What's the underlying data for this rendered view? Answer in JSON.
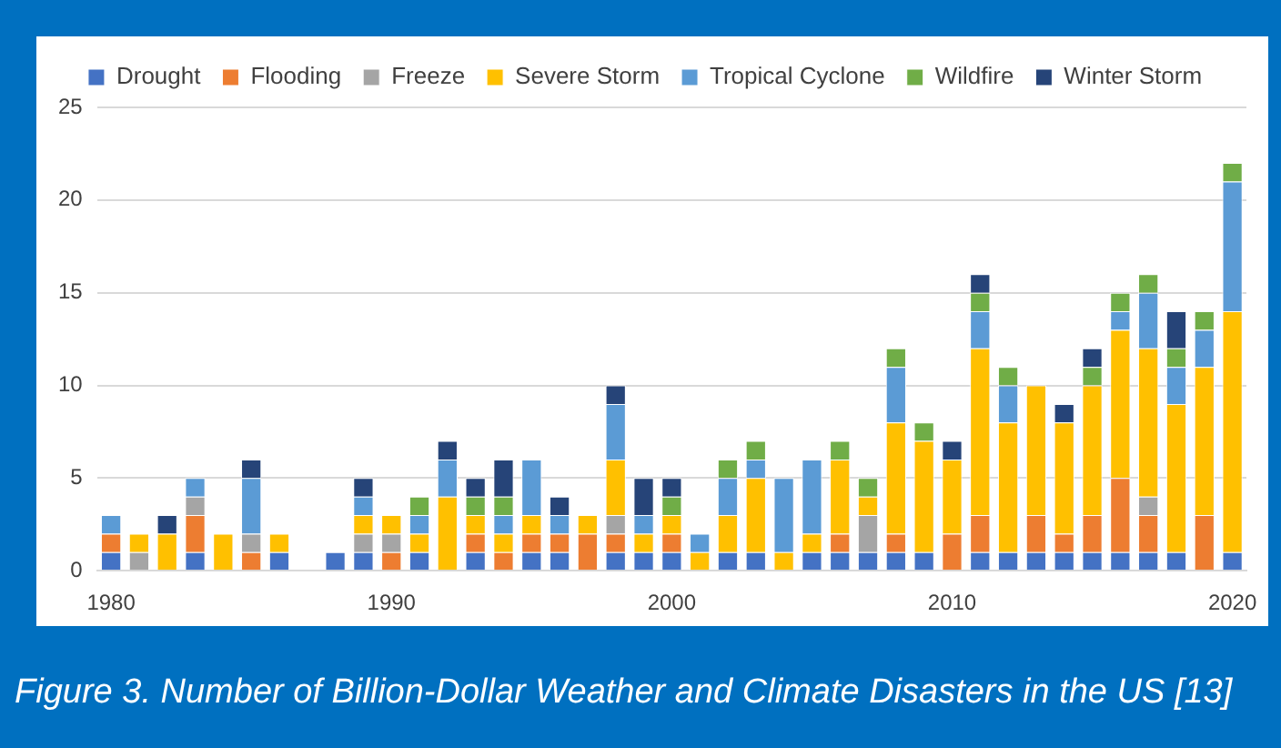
{
  "chart_data": {
    "type": "bar",
    "stacked": true,
    "categories": [
      "1980",
      null,
      null,
      null,
      null,
      null,
      null,
      null,
      null,
      null,
      "1990",
      null,
      null,
      null,
      null,
      null,
      null,
      null,
      null,
      null,
      "2000",
      null,
      null,
      null,
      null,
      null,
      null,
      null,
      null,
      null,
      "2010",
      null,
      null,
      null,
      null,
      null,
      null,
      null,
      null,
      null,
      "2020"
    ],
    "series": [
      {
        "name": "Drought",
        "color": "#4472c4",
        "values": [
          1,
          0,
          0,
          1,
          0,
          0,
          1,
          0,
          1,
          1,
          0,
          1,
          0,
          1,
          0,
          1,
          1,
          0,
          1,
          1,
          1,
          0,
          1,
          1,
          0,
          1,
          1,
          1,
          1,
          1,
          0,
          1,
          1,
          1,
          1,
          1,
          1,
          1,
          1,
          0,
          1
        ]
      },
      {
        "name": "Flooding",
        "color": "#ed7d31",
        "values": [
          1,
          0,
          0,
          2,
          0,
          1,
          0,
          0,
          0,
          0,
          1,
          0,
          0,
          1,
          1,
          1,
          1,
          2,
          1,
          0,
          1,
          0,
          0,
          0,
          0,
          0,
          1,
          0,
          1,
          0,
          2,
          2,
          0,
          2,
          1,
          2,
          4,
          2,
          0,
          3,
          0
        ]
      },
      {
        "name": "Freeze",
        "color": "#a5a5a5",
        "values": [
          0,
          1,
          0,
          1,
          0,
          1,
          0,
          0,
          0,
          1,
          1,
          0,
          0,
          0,
          0,
          0,
          0,
          0,
          1,
          0,
          0,
          0,
          0,
          0,
          0,
          0,
          0,
          2,
          0,
          0,
          0,
          0,
          0,
          0,
          0,
          0,
          0,
          1,
          0,
          0,
          0
        ]
      },
      {
        "name": "Severe Storm",
        "color": "#ffc000",
        "values": [
          0,
          1,
          2,
          0,
          2,
          0,
          1,
          0,
          0,
          1,
          1,
          1,
          4,
          1,
          1,
          1,
          0,
          1,
          3,
          1,
          1,
          1,
          2,
          4,
          1,
          1,
          4,
          1,
          6,
          6,
          4,
          9,
          7,
          7,
          6,
          7,
          8,
          8,
          8,
          8,
          13
        ]
      },
      {
        "name": "Tropical Cyclone",
        "color": "#5b9bd5",
        "values": [
          1,
          0,
          0,
          1,
          0,
          3,
          0,
          0,
          0,
          1,
          0,
          1,
          2,
          0,
          1,
          3,
          1,
          0,
          3,
          1,
          0,
          1,
          2,
          1,
          4,
          4,
          0,
          0,
          3,
          0,
          0,
          2,
          2,
          0,
          0,
          0,
          1,
          3,
          2,
          2,
          7
        ]
      },
      {
        "name": "Wildfire",
        "color": "#70ad47",
        "values": [
          0,
          0,
          0,
          0,
          0,
          0,
          0,
          0,
          0,
          0,
          0,
          1,
          0,
          1,
          1,
          0,
          0,
          0,
          0,
          0,
          1,
          0,
          1,
          1,
          0,
          0,
          1,
          1,
          1,
          1,
          0,
          1,
          1,
          0,
          0,
          1,
          1,
          1,
          1,
          1,
          1
        ]
      },
      {
        "name": "Winter Storm",
        "color": "#264478",
        "values": [
          0,
          0,
          1,
          0,
          0,
          1,
          0,
          0,
          0,
          1,
          0,
          0,
          1,
          1,
          2,
          0,
          1,
          0,
          1,
          2,
          1,
          0,
          0,
          0,
          0,
          0,
          0,
          0,
          0,
          0,
          1,
          1,
          0,
          0,
          1,
          1,
          0,
          0,
          2,
          0,
          0
        ]
      }
    ],
    "ylim": [
      0,
      25
    ],
    "yticks": [
      0,
      5,
      10,
      15,
      20,
      25
    ],
    "grid": "y",
    "legend": "top",
    "annotations": [
      "Figure 3. Number of Billion-Dollar Weather and Climate Disasters in the US [13]"
    ]
  }
}
